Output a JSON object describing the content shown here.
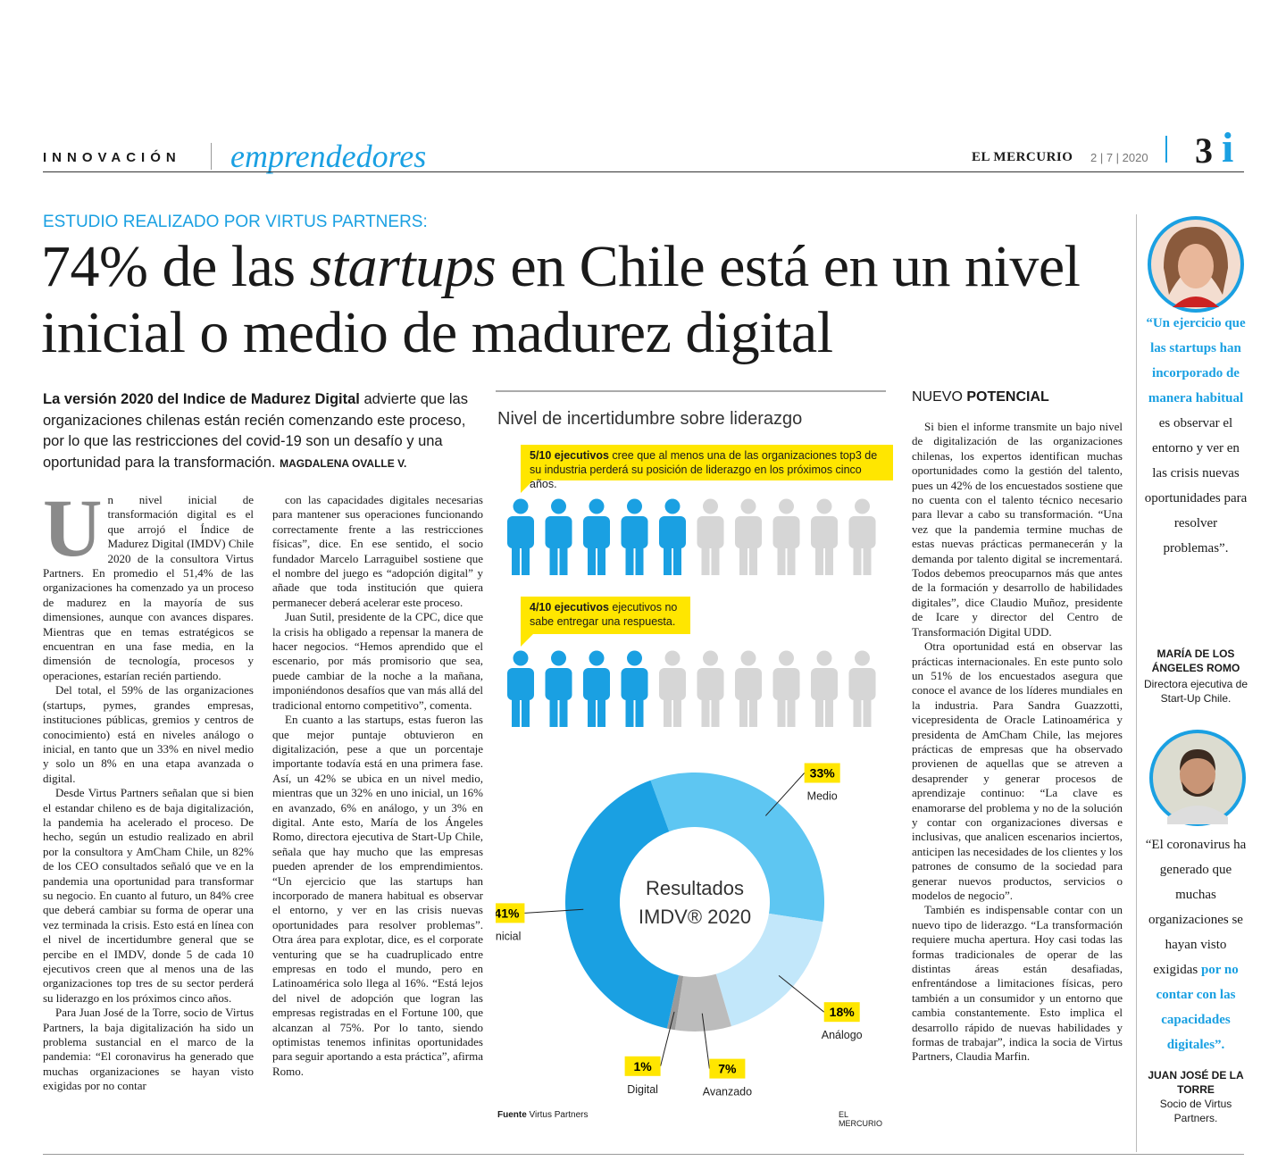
{
  "header": {
    "section": "INNOVACIÓN",
    "subsection": "emprendedores",
    "paper": "EL MERCURIO",
    "date": "2 | 7 | 2020",
    "page": "3",
    "page_mark": "i"
  },
  "article": {
    "kicker": "ESTUDIO REALIZADO POR VIRTUS PARTNERS:",
    "headline": [
      "74% de las ",
      "startups",
      " en Chile está en un nivel inicial o medio de madurez digital"
    ],
    "lead": {
      "bold": "La versión 2020 del Indice de Madurez Digital",
      "text": " advierte que las organizaciones chilenas están recién comenzando este proceso, por lo que las restricciones del covid-19 son un desafío y una oportunidad para la transformación.",
      "byline": "MAGDALENA OVALLE V."
    },
    "drop_cap": "U",
    "columns": [
      [
        "n nivel inicial de transformación digital es el que arrojó el Índice de Madurez Digital (IMDV) Chile 2020 de la consultora Virtus Partners. En promedio el 51,4% de las organizaciones ha comenzado ya un proceso de madurez en la mayoría de sus dimensiones, aunque con avances dispares. Mientras que en temas estratégicos se encuentran en una fase media, en la dimensión de tecnología, procesos y operaciones, estarían recién partiendo.",
        "Del total, el 59% de las organizaciones (startups, pymes, grandes empresas, instituciones públicas, gremios y centros de conocimiento) está en niveles análogo o inicial, en tanto que un 33% en nivel medio y solo un 8% en una etapa avanzada o digital.",
        "Desde Virtus Partners señalan que si bien el estandar chileno es de baja digitalización, la pandemia ha acelerado el proceso. De hecho, según un estudio realizado en abril por la consultora y AmCham Chile, un 82% de los CEO consultados señaló que ve en la pandemia una oportunidad para transformar su negocio. En cuanto al futuro, un 84% cree que deberá cambiar su forma de operar una vez terminada la crisis. Esto está en línea con el nivel de incertidumbre general que se percibe en el IMDV, donde 5 de cada 10 ejecutivos creen que al menos una de las organizaciones top tres de su sector perderá su liderazgo en los próximos cinco años.",
        "Para Juan José de la Torre, socio de Virtus Partners, la baja digitalización ha sido un problema sustancial en el marco de la pandemia: “El coronavirus ha generado que muchas organizaciones se hayan visto exigidas por no contar"
      ],
      [
        "con las capacidades digitales necesarias para mantener sus operaciones funcionando correctamente frente a las restricciones físicas”, dice. En ese sentido, el socio fundador Marcelo Larraguibel sostiene que el nombre del juego es “adopción digital” y añade que toda institución que quiera permanecer deberá acelerar este proceso.",
        "Juan Sutil, presidente de la CPC, dice que la crisis ha obligado a repensar la manera de hacer negocios. “Hemos aprendido que el escenario, por más promisorio que sea, puede cambiar de la noche a la mañana, imponiéndonos desafíos que van más allá del tradicional entorno competitivo”, comenta.",
        "En cuanto a las startups, estas fueron las que mejor puntaje obtuvieron en digitalización, pese a que un porcentaje importante todavía está en una primera fase. Así, un 42% se ubica en un nivel medio, mientras que un 32% en uno inicial, un 16% en avanzado, 6% en análogo, y un 3% en digital. Ante esto, María de los Ángeles Romo, directora ejecutiva de Start-Up Chile, señala que hay mucho que las empresas pueden aprender de los emprendimientos. “Un ejercicio que las startups han incorporado de manera habitual es observar el entorno, y ver en las crisis nuevas oportunidades para resolver problemas”. Otra área para explotar, dice, es el corporate venturing que se ha cuadruplicado entre empresas en todo el mundo, pero en Latinoamérica solo llega al 16%. “Está lejos del nivel de adopción que logran las empresas registradas en el Fortune 100, que alcanzan al 75%. Por lo tanto, siendo optimistas tenemos infinitas oportunidades para seguir aportando a esta práctica”, afirma Romo."
      ]
    ],
    "section2": {
      "heading": [
        "NUEVO ",
        "POTENCIAL"
      ],
      "paragraphs": [
        "Si bien el informe transmite un bajo nivel de digitalización de las organizaciones chilenas, los expertos identifican muchas oportunidades como la gestión del talento, pues un 42% de los encuestados sostiene que no cuenta con el talento técnico necesario para llevar a cabo su transformación. “Una vez que la pandemia termine muchas de estas nuevas prácticas permanecerán y la demanda por talento digital se incrementará. Todos debemos preocuparnos más que antes de la formación y desarrollo de habilidades digitales”, dice Claudio Muñoz, presidente de Icare y director del Centro de Transformación Digital UDD.",
        "Otra oportunidad está en observar las prácticas internacionales. En este punto solo un 51% de los encuestados asegura que conoce el avance de los líderes mundiales en la industria. Para Sandra Guazzotti, vicepresidenta de Oracle Latinoamérica y presidenta de AmCham Chile, las mejores prácticas de empresas que ha observado provienen de aquellas que se atreven a desaprender y generar procesos de aprendizaje continuo: “La clave es enamorarse del problema y no de la solución y contar con organizaciones diversas e inclusivas, que analicen escenarios inciertos, anticipen las necesidades de los clientes y los patrones de consumo de la sociedad para generar nuevos productos, servicios o modelos de negocio”.",
        "También es indispensable contar con un nuevo tipo de liderazgo. “La transformación requiere mucha apertura. Hoy casi todas las formas tradicionales de operar de las distintas áreas están desafiadas, enfrentándose a limitaciones físicas, pero también a un consumidor y un entorno que cambia constantemente. Esto implica el desarrollo rápido de nuevas habilidades y formas de trabajar”, indica la socia de Virtus Partners, Claudia Marfin."
      ]
    }
  },
  "sidebar": {
    "quotes": [
      {
        "segments": [
          {
            "text": "“Un ejercicio que las startups han incorporado de manera habitual",
            "highlight": true
          },
          {
            "text": " es observar el entorno y ver en las crisis nuevas oportunidades para resolver problemas”.",
            "highlight": false
          }
        ],
        "name": "MARÍA DE LOS ÁNGELES ROMO",
        "role": "Directora ejecutiva de Start-Up Chile."
      },
      {
        "segments": [
          {
            "text": "“El coronavirus ha generado que muchas organizaciones se hayan visto exigidas ",
            "highlight": false
          },
          {
            "text": "por no contar con las capacidades digitales”.",
            "highlight": true
          }
        ],
        "name": "JUAN JOSÉ DE LA TORRE",
        "role": "Socio de Virtus Partners."
      }
    ]
  },
  "infographic": {
    "title": "Nivel de incertidumbre sobre liderazgo",
    "callouts": [
      {
        "bold": "5/10 ejecutivos",
        "text": " cree que al menos una de las organizaciones top3 de su industria perderá su posición de liderazgo en los próximos cinco años.",
        "filled": 5,
        "total": 10
      },
      {
        "bold": "4/10 ejecutivos",
        "text": " ejecutivos no sabe entregar una respuesta.",
        "filled": 4,
        "total": 10
      }
    ],
    "source_label": "Fuente",
    "source": " Virtus Partners",
    "credit": "EL MERCURIO"
  },
  "chart_data": {
    "type": "donut",
    "center": [
      "Resultados",
      "IMDV® 2020"
    ],
    "categories": [
      "Medio",
      "Análogo",
      "Avanzado",
      "Digital",
      "Inicial"
    ],
    "values": [
      33,
      18,
      7,
      1,
      41
    ],
    "value_labels": [
      "33%",
      "18%",
      "7%",
      "1%",
      "41%"
    ],
    "colors": [
      "#5ec6f2",
      "#c2e7fa",
      "#bcbcbc",
      "#9a9a9a",
      "#1aa0e2"
    ]
  }
}
